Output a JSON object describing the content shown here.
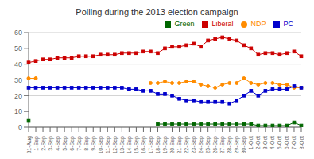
{
  "chart_data": {
    "type": "line",
    "title": "Polling during the 2013 election campaign",
    "categories": [
      "31-Aug",
      "1-Sep",
      "2-Sep",
      "3-Sep",
      "4-Sep",
      "5-Sep",
      "6-Sep",
      "7-Sep",
      "8-Sep",
      "9-Sep",
      "10-Sep",
      "11-Sep",
      "12-Sep",
      "13-Sep",
      "14-Sep",
      "15-Sep",
      "16-Sep",
      "17-Sep",
      "18-Sep",
      "19-Sep",
      "20-Sep",
      "21-Sep",
      "22-Sep",
      "23-Sep",
      "24-Sep",
      "25-Sep",
      "26-Sep",
      "27-Sep",
      "28-Sep",
      "29-Sep",
      "30-Sep",
      "1-Oct",
      "2-Oct",
      "3-Oct",
      "4-Oct",
      "5-Oct",
      "6-Oct",
      "7-Oct",
      "8-Oct"
    ],
    "series": [
      {
        "name": "NDP",
        "color": "#FF8C00",
        "marker": "circle",
        "values": [
          31,
          31,
          null,
          null,
          null,
          null,
          null,
          null,
          null,
          null,
          null,
          null,
          null,
          null,
          null,
          null,
          null,
          28,
          28,
          29,
          28,
          28,
          29,
          29,
          27,
          26,
          25,
          27,
          28,
          28,
          31,
          28,
          27,
          28,
          28,
          27,
          27,
          25,
          25
        ]
      },
      {
        "name": "Liberal",
        "color": "#CC0000",
        "marker": "square",
        "values": [
          41,
          42,
          43,
          43,
          44,
          44,
          44,
          45,
          45,
          45,
          46,
          46,
          46,
          47,
          47,
          47,
          48,
          48,
          47,
          50,
          51,
          51,
          52,
          53,
          51,
          55,
          56,
          57,
          56,
          55,
          52,
          50,
          46,
          47,
          47,
          46,
          47,
          48,
          45
        ]
      },
      {
        "name": "PC",
        "color": "#0000CC",
        "marker": "square",
        "values": [
          25,
          25,
          25,
          25,
          25,
          25,
          25,
          25,
          25,
          25,
          25,
          25,
          25,
          25,
          24,
          24,
          23,
          23,
          21,
          21,
          20,
          18,
          17,
          17,
          16,
          16,
          16,
          16,
          15,
          17,
          20,
          23,
          20,
          23,
          24,
          24,
          24,
          26,
          25
        ]
      },
      {
        "name": "Green",
        "color": "#006600",
        "marker": "square",
        "values": [
          4,
          null,
          null,
          null,
          null,
          null,
          null,
          null,
          null,
          null,
          null,
          null,
          null,
          null,
          null,
          null,
          null,
          null,
          2,
          2,
          2,
          2,
          2,
          2,
          2,
          2,
          2,
          2,
          2,
          2,
          2,
          2,
          1,
          1,
          1,
          1,
          1,
          3,
          1
        ]
      }
    ],
    "ylim": [
      0,
      60
    ],
    "yticks": [
      0,
      10,
      20,
      30,
      40,
      50,
      60
    ],
    "grid": true,
    "legend": "upper right"
  }
}
